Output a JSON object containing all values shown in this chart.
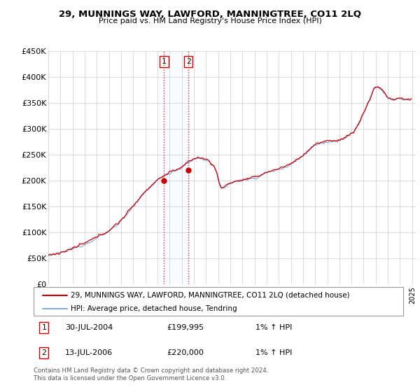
{
  "title": "29, MUNNINGS WAY, LAWFORD, MANNINGTREE, CO11 2LQ",
  "subtitle": "Price paid vs. HM Land Registry's House Price Index (HPI)",
  "ytick_labels": [
    "£0",
    "£50K",
    "£100K",
    "£150K",
    "£200K",
    "£250K",
    "£300K",
    "£350K",
    "£400K",
    "£450K"
  ],
  "yticks": [
    0,
    50000,
    100000,
    150000,
    200000,
    250000,
    300000,
    350000,
    400000,
    450000
  ],
  "ylim": [
    0,
    450000
  ],
  "xlim_start": 1995.0,
  "xlim_end": 2025.3,
  "legend_line1": "29, MUNNINGS WAY, LAWFORD, MANNINGTREE, CO11 2LQ (detached house)",
  "legend_line2": "HPI: Average price, detached house, Tendring",
  "annotation1_label": "1",
  "annotation1_date": "30-JUL-2004",
  "annotation1_price": "£199,995",
  "annotation1_hpi": "1% ↑ HPI",
  "annotation2_label": "2",
  "annotation2_date": "13-JUL-2006",
  "annotation2_price": "£220,000",
  "annotation2_hpi": "1% ↑ HPI",
  "footer": "Contains HM Land Registry data © Crown copyright and database right 2024.\nThis data is licensed under the Open Government Licence v3.0.",
  "property_color": "#cc0000",
  "hpi_color": "#88aadd",
  "shade_color": "#ddeeff",
  "background_color": "#ffffff",
  "grid_color": "#cccccc",
  "sale1_x": 2004.55,
  "sale1_y": 199995,
  "sale2_x": 2006.55,
  "sale2_y": 220000
}
